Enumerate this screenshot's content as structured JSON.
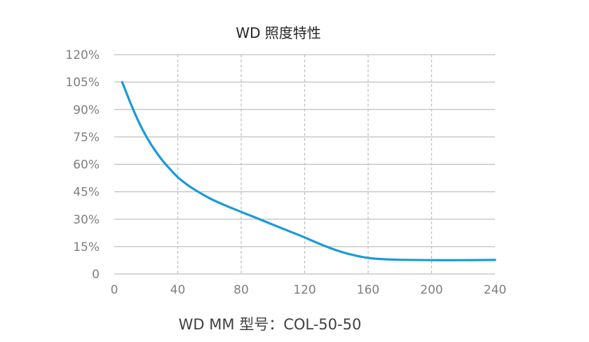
{
  "title": "WD 照度特性",
  "caption": "WD MM 型号：COL-50-50",
  "colors": {
    "series": "#1a9ad9",
    "grid": "#bfbfbf",
    "text": "#7f7f7f"
  },
  "chart_data": {
    "type": "line",
    "title": "WD 照度特性",
    "xlabel": "WD MM 型号：COL-50-50",
    "ylabel": "",
    "xlim": [
      0,
      240
    ],
    "ylim": [
      0,
      120
    ],
    "x_ticks": [
      0,
      40,
      80,
      120,
      160,
      200,
      240
    ],
    "x_tick_labels": [
      "0",
      "40",
      "80",
      "120",
      "160",
      "200",
      "240"
    ],
    "y_ticks": [
      0,
      15,
      30,
      45,
      60,
      75,
      90,
      105,
      120
    ],
    "y_tick_labels": [
      "0",
      "15%",
      "30%",
      "45%",
      "60%",
      "75%",
      "90%",
      "105%",
      "120%"
    ],
    "grid": {
      "horizontal": "solid",
      "vertical": "dashed"
    },
    "series": [
      {
        "x": [
          5,
          10,
          15,
          20,
          25,
          30,
          35,
          40,
          45,
          50,
          60,
          70,
          80,
          90,
          100,
          110,
          120,
          130,
          140,
          150,
          160,
          170,
          180,
          200,
          220,
          240
        ],
        "values": [
          105,
          94,
          84,
          75.5,
          68.5,
          62.5,
          57.5,
          53,
          49.5,
          46.5,
          41.5,
          37.5,
          34,
          30.5,
          27,
          23.5,
          20,
          16.3,
          13,
          10.5,
          8.8,
          8.1,
          7.8,
          7.6,
          7.6,
          7.7
        ]
      }
    ]
  }
}
